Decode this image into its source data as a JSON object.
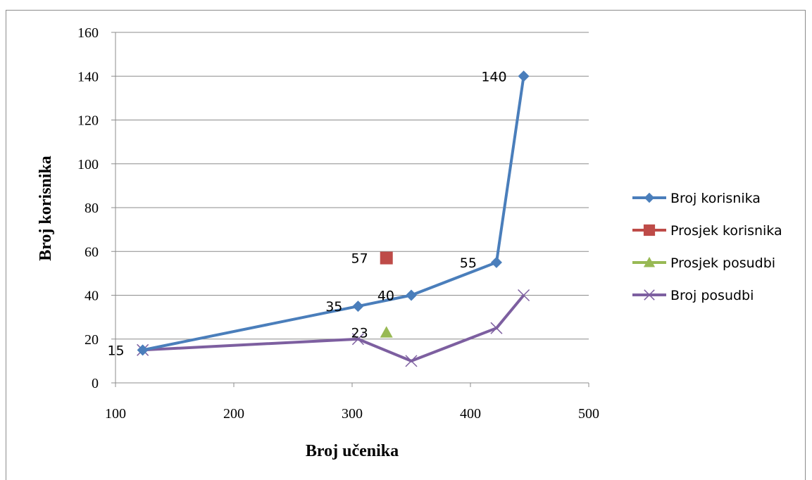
{
  "chart_data": {
    "type": "scatter",
    "xlabel": "Broj učenika",
    "ylabel": "Broj korisnika",
    "xlim": [
      100,
      500
    ],
    "ylim": [
      0,
      160
    ],
    "xticks": [
      "100",
      "200",
      "300",
      "400",
      "500"
    ],
    "yticks": [
      "0",
      "20",
      "40",
      "60",
      "80",
      "100",
      "120",
      "140",
      "160"
    ],
    "grid": "horizontal",
    "legend_position": "right",
    "series": [
      {
        "name": "Broj korisnika",
        "color": "#4a7ebb",
        "marker": "diamond",
        "line": true,
        "points": [
          [
            123,
            15
          ],
          [
            305,
            35
          ],
          [
            350,
            40
          ],
          [
            422,
            55
          ],
          [
            445,
            140
          ]
        ],
        "labels": [
          "15",
          "35",
          "40",
          "55",
          "140"
        ]
      },
      {
        "name": "Prosjek korisnika",
        "color": "#be4b48",
        "marker": "square",
        "line": false,
        "points": [
          [
            329,
            57
          ]
        ],
        "labels": [
          "57"
        ]
      },
      {
        "name": "Prosjek posudbi",
        "color": "#98b954",
        "marker": "triangle",
        "line": false,
        "points": [
          [
            329,
            23
          ]
        ],
        "labels": [
          "23"
        ]
      },
      {
        "name": "Broj posudbi",
        "color": "#7d5fa0",
        "marker": "x",
        "line": true,
        "points": [
          [
            123,
            15
          ],
          [
            305,
            20
          ],
          [
            350,
            10
          ],
          [
            422,
            25
          ],
          [
            445,
            40
          ]
        ],
        "labels": []
      }
    ]
  }
}
